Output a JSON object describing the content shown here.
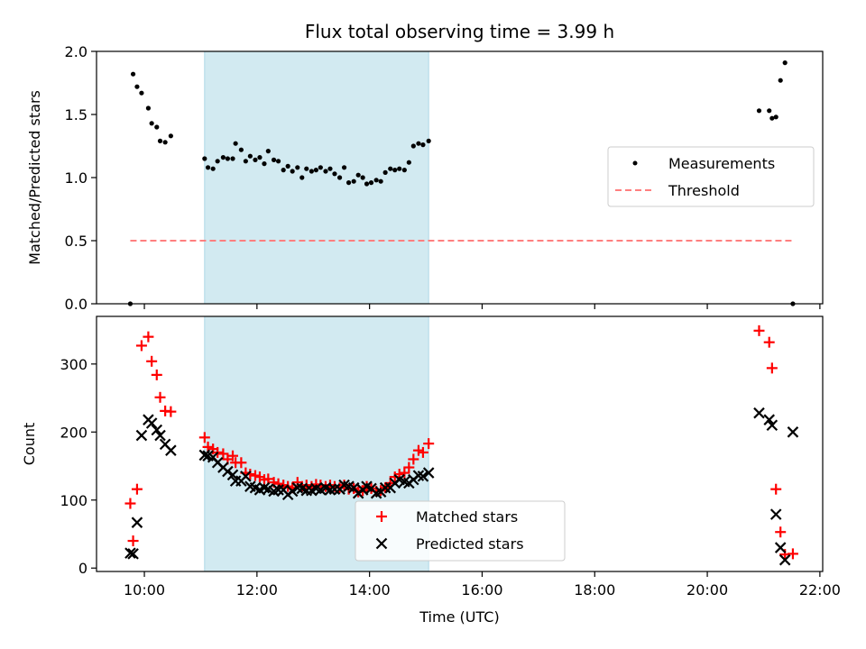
{
  "chart_data": [
    {
      "type": "scatter",
      "title": "Flux total observing time = 3.99 h",
      "xlabel": "",
      "ylabel": "Matched/Predicted stars",
      "ylim": [
        0,
        2.0
      ],
      "yticks": [
        "0.0",
        "0.5",
        "1.0",
        "1.5",
        "2.0"
      ],
      "xlim_hours": [
        9.15,
        22.05
      ],
      "shaded_span_hours": [
        11.07,
        15.05
      ],
      "shade_color": "#add8e6",
      "legend_position": "center-right",
      "series": [
        {
          "name": "Measurements",
          "kind": "scatter",
          "color": "#000000",
          "points": [
            [
              9.75,
              0.0
            ],
            [
              9.8,
              1.82
            ],
            [
              9.87,
              1.72
            ],
            [
              9.95,
              1.67
            ],
            [
              10.07,
              1.55
            ],
            [
              10.13,
              1.43
            ],
            [
              10.22,
              1.4
            ],
            [
              10.28,
              1.29
            ],
            [
              10.37,
              1.28
            ],
            [
              10.47,
              1.33
            ],
            [
              11.07,
              1.15
            ],
            [
              11.13,
              1.08
            ],
            [
              11.22,
              1.07
            ],
            [
              11.3,
              1.13
            ],
            [
              11.4,
              1.16
            ],
            [
              11.48,
              1.15
            ],
            [
              11.57,
              1.15
            ],
            [
              11.62,
              1.27
            ],
            [
              11.72,
              1.22
            ],
            [
              11.8,
              1.13
            ],
            [
              11.88,
              1.17
            ],
            [
              11.97,
              1.14
            ],
            [
              12.05,
              1.16
            ],
            [
              12.13,
              1.11
            ],
            [
              12.2,
              1.21
            ],
            [
              12.3,
              1.14
            ],
            [
              12.38,
              1.13
            ],
            [
              12.47,
              1.06
            ],
            [
              12.55,
              1.09
            ],
            [
              12.63,
              1.05
            ],
            [
              12.72,
              1.08
            ],
            [
              12.8,
              1.0
            ],
            [
              12.88,
              1.07
            ],
            [
              12.97,
              1.05
            ],
            [
              13.05,
              1.06
            ],
            [
              13.13,
              1.08
            ],
            [
              13.22,
              1.05
            ],
            [
              13.3,
              1.07
            ],
            [
              13.38,
              1.03
            ],
            [
              13.47,
              1.0
            ],
            [
              13.55,
              1.08
            ],
            [
              13.63,
              0.96
            ],
            [
              13.72,
              0.97
            ],
            [
              13.8,
              1.02
            ],
            [
              13.88,
              1.0
            ],
            [
              13.95,
              0.95
            ],
            [
              14.03,
              0.96
            ],
            [
              14.12,
              0.98
            ],
            [
              14.2,
              0.97
            ],
            [
              14.28,
              1.04
            ],
            [
              14.37,
              1.07
            ],
            [
              14.45,
              1.06
            ],
            [
              14.53,
              1.07
            ],
            [
              14.62,
              1.06
            ],
            [
              14.7,
              1.12
            ],
            [
              14.78,
              1.25
            ],
            [
              14.87,
              1.27
            ],
            [
              14.95,
              1.26
            ],
            [
              15.05,
              1.29
            ],
            [
              20.92,
              1.53
            ],
            [
              21.1,
              1.53
            ],
            [
              21.15,
              1.47
            ],
            [
              21.22,
              1.48
            ],
            [
              21.3,
              1.77
            ],
            [
              21.38,
              1.91
            ],
            [
              21.52,
              0.0
            ]
          ]
        },
        {
          "name": "Threshold",
          "kind": "line",
          "color": "#ff7f7f",
          "dash": "dashed",
          "points": [
            [
              9.75,
              0.5
            ],
            [
              21.5,
              0.5
            ]
          ]
        }
      ]
    },
    {
      "type": "scatter",
      "title": "",
      "xlabel": "Time (UTC)",
      "ylabel": "Count",
      "ylim": [
        -5,
        370
      ],
      "yticks": [
        "0",
        "100",
        "200",
        "300"
      ],
      "xlim_hours": [
        9.15,
        22.05
      ],
      "xticks": [
        "10:00",
        "12:00",
        "14:00",
        "16:00",
        "18:00",
        "20:00",
        "22:00"
      ],
      "shaded_span_hours": [
        11.07,
        15.05
      ],
      "shade_color": "#add8e6",
      "legend_position": "lower-center",
      "series": [
        {
          "name": "Matched stars",
          "kind": "plus",
          "color": "#ff0000",
          "points": [
            [
              9.75,
              95
            ],
            [
              9.8,
              40
            ],
            [
              9.87,
              116
            ],
            [
              9.95,
              327
            ],
            [
              10.07,
              340
            ],
            [
              10.13,
              304
            ],
            [
              10.22,
              284
            ],
            [
              10.28,
              251
            ],
            [
              10.37,
              231
            ],
            [
              10.47,
              230
            ],
            [
              11.07,
              192
            ],
            [
              11.13,
              178
            ],
            [
              11.22,
              175
            ],
            [
              11.3,
              170
            ],
            [
              11.4,
              168
            ],
            [
              11.48,
              160
            ],
            [
              11.57,
              165
            ],
            [
              11.62,
              155
            ],
            [
              11.72,
              155
            ],
            [
              11.8,
              140
            ],
            [
              11.88,
              138
            ],
            [
              11.97,
              136
            ],
            [
              12.05,
              134
            ],
            [
              12.13,
              130
            ],
            [
              12.2,
              131
            ],
            [
              12.3,
              126
            ],
            [
              12.38,
              124
            ],
            [
              12.47,
              122
            ],
            [
              12.55,
              120
            ],
            [
              12.63,
              118
            ],
            [
              12.72,
              126
            ],
            [
              12.8,
              120
            ],
            [
              12.88,
              122
            ],
            [
              12.97,
              120
            ],
            [
              13.05,
              123
            ],
            [
              13.13,
              122
            ],
            [
              13.22,
              120
            ],
            [
              13.3,
              122
            ],
            [
              13.38,
              120
            ],
            [
              13.47,
              118
            ],
            [
              13.55,
              122
            ],
            [
              13.63,
              116
            ],
            [
              13.72,
              117
            ],
            [
              13.8,
              112
            ],
            [
              13.88,
              114
            ],
            [
              13.95,
              120
            ],
            [
              14.03,
              117
            ],
            [
              14.12,
              113
            ],
            [
              14.2,
              114
            ],
            [
              14.28,
              118
            ],
            [
              14.37,
              125
            ],
            [
              14.45,
              134
            ],
            [
              14.53,
              138
            ],
            [
              14.62,
              140
            ],
            [
              14.7,
              148
            ],
            [
              14.78,
              160
            ],
            [
              14.87,
              173
            ],
            [
              14.95,
              170
            ],
            [
              15.05,
              183
            ],
            [
              20.92,
              349
            ],
            [
              21.1,
              332
            ],
            [
              21.15,
              294
            ],
            [
              21.22,
              116
            ],
            [
              21.3,
              53
            ],
            [
              21.38,
              20
            ],
            [
              21.52,
              21
            ]
          ]
        },
        {
          "name": "Predicted stars",
          "kind": "cross",
          "color": "#000000",
          "points": [
            [
              9.75,
              22
            ],
            [
              9.8,
              21
            ],
            [
              9.87,
              67
            ],
            [
              9.95,
              195
            ],
            [
              10.07,
              218
            ],
            [
              10.13,
              213
            ],
            [
              10.22,
              203
            ],
            [
              10.28,
              195
            ],
            [
              10.37,
              182
            ],
            [
              10.47,
              173
            ],
            [
              11.07,
              166
            ],
            [
              11.13,
              165
            ],
            [
              11.22,
              163
            ],
            [
              11.3,
              155
            ],
            [
              11.4,
              148
            ],
            [
              11.48,
              142
            ],
            [
              11.57,
              137
            ],
            [
              11.62,
              128
            ],
            [
              11.72,
              128
            ],
            [
              11.8,
              135
            ],
            [
              11.88,
              120
            ],
            [
              11.97,
              118
            ],
            [
              12.05,
              115
            ],
            [
              12.13,
              118
            ],
            [
              12.2,
              116
            ],
            [
              12.3,
              113
            ],
            [
              12.38,
              115
            ],
            [
              12.47,
              115
            ],
            [
              12.55,
              108
            ],
            [
              12.63,
              113
            ],
            [
              12.72,
              118
            ],
            [
              12.8,
              117
            ],
            [
              12.88,
              114
            ],
            [
              12.97,
              114
            ],
            [
              13.05,
              117
            ],
            [
              13.13,
              115
            ],
            [
              13.22,
              118
            ],
            [
              13.3,
              115
            ],
            [
              13.38,
              116
            ],
            [
              13.47,
              116
            ],
            [
              13.55,
              122
            ],
            [
              13.63,
              120
            ],
            [
              13.72,
              118
            ],
            [
              13.8,
              110
            ],
            [
              13.88,
              115
            ],
            [
              13.95,
              120
            ],
            [
              14.03,
              117
            ],
            [
              14.12,
              110
            ],
            [
              14.2,
              112
            ],
            [
              14.28,
              118
            ],
            [
              14.37,
              118
            ],
            [
              14.45,
              125
            ],
            [
              14.53,
              130
            ],
            [
              14.62,
              127
            ],
            [
              14.7,
              125
            ],
            [
              14.78,
              130
            ],
            [
              14.87,
              136
            ],
            [
              14.95,
              135
            ],
            [
              15.05,
              140
            ],
            [
              20.92,
              228
            ],
            [
              21.1,
              218
            ],
            [
              21.15,
              210
            ],
            [
              21.22,
              79
            ],
            [
              21.3,
              30
            ],
            [
              21.38,
              12
            ],
            [
              21.52,
              200
            ]
          ]
        }
      ]
    }
  ]
}
